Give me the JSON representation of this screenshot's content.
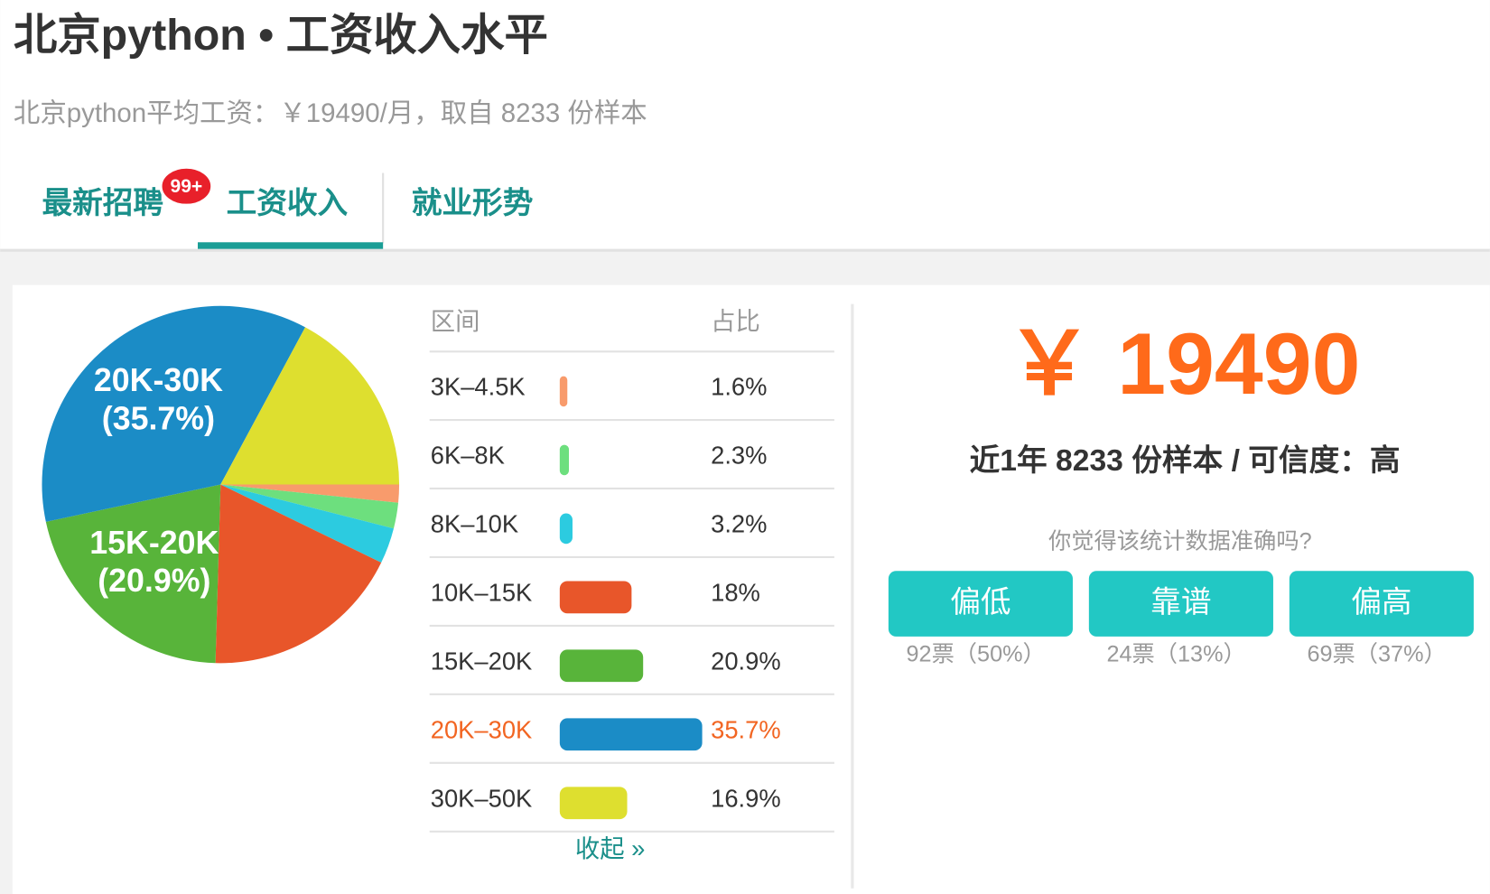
{
  "header": {
    "title": "北京python • 工资收入水平",
    "subtitle": "北京python平均工资：￥19490/月，取自 8233 份样本"
  },
  "tabs": [
    {
      "label": "最新招聘",
      "badge": "99+"
    },
    {
      "label": "工资收入",
      "active": true
    },
    {
      "label": "就业形势"
    }
  ],
  "distribution": {
    "columns": [
      "区间",
      "占比"
    ],
    "items": [
      {
        "range": "3K–4.5K",
        "value": 1.6,
        "value_label": "1.6%",
        "color": "#f89b6c"
      },
      {
        "range": "6K–8K",
        "value": 2.3,
        "value_label": "2.3%",
        "color": "#6ddf7e"
      },
      {
        "range": "8K–10K",
        "value": 3.2,
        "value_label": "3.2%",
        "color": "#2ccbe0"
      },
      {
        "range": "10K–15K",
        "value": 18,
        "value_label": "18%",
        "color": "#e8562a"
      },
      {
        "range": "15K–20K",
        "value": 20.9,
        "value_label": "20.9%",
        "color": "#58b43a",
        "pie_label": [
          "15K-20K",
          "(20.9%)"
        ]
      },
      {
        "range": "20K–30K",
        "value": 35.7,
        "value_label": "35.7%",
        "color": "#1b8cc6",
        "highlight": true,
        "pie_label": [
          "20K-30K",
          "(35.7%)"
        ]
      },
      {
        "range": "30K–50K",
        "value": 16.9,
        "value_label": "16.9%",
        "color": "#dedf2f"
      }
    ],
    "toggle": "收起 »"
  },
  "summary": {
    "average": "￥ 19490",
    "note": "近1年 8233 份样本 / 可信度：高",
    "question": "你觉得该统计数据准确吗?",
    "options": [
      {
        "label": "偏低",
        "votes": "92票（50%）"
      },
      {
        "label": "靠谱",
        "votes": "24票（13%）"
      },
      {
        "label": "偏高",
        "votes": "69票（37%）"
      }
    ]
  }
}
